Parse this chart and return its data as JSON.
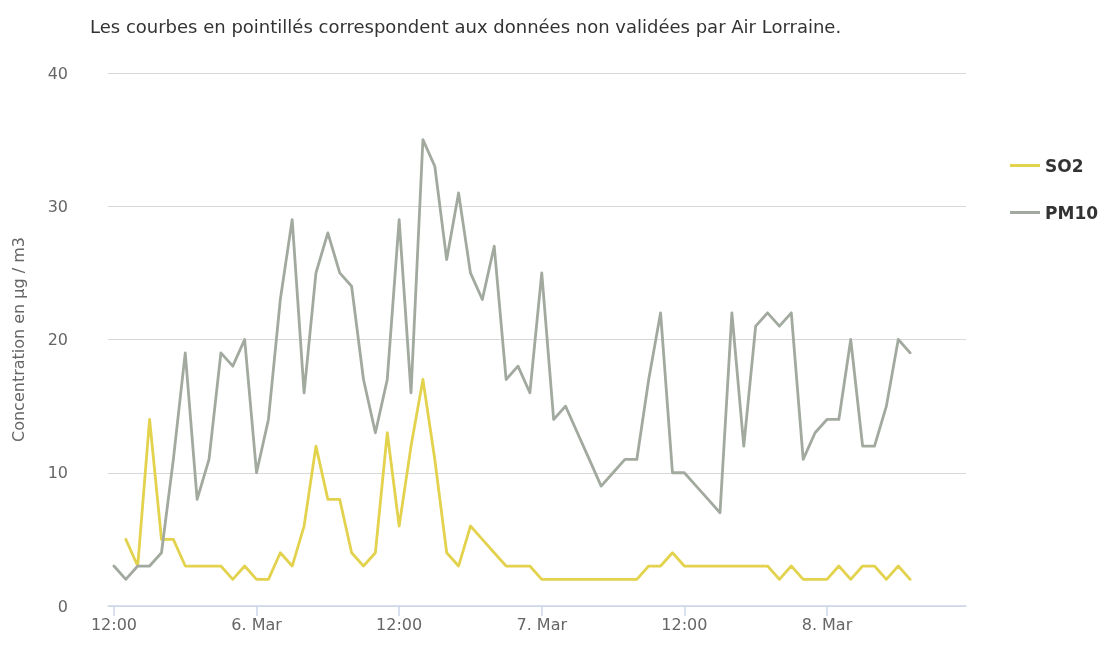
{
  "chart_data": {
    "type": "line",
    "title": "Les courbes en pointillés correspondent aux données non validées par Air Lorraine.",
    "ylabel": "Concentration en µg / m3",
    "x": [
      "--03-05T12:00",
      "--03-05T13:00",
      "--03-05T14:00",
      "--03-05T15:00",
      "--03-05T16:00",
      "--03-05T17:00",
      "--03-05T18:00",
      "--03-05T19:00",
      "--03-05T20:00",
      "--03-05T21:00",
      "--03-05T22:00",
      "--03-05T23:00",
      "--03-06T00:00",
      "--03-06T01:00",
      "--03-06T02:00",
      "--03-06T03:00",
      "--03-06T04:00",
      "--03-06T05:00",
      "--03-06T06:00",
      "--03-06T07:00",
      "--03-06T08:00",
      "--03-06T09:00",
      "--03-06T10:00",
      "--03-06T11:00",
      "--03-06T12:00",
      "--03-06T13:00",
      "--03-06T14:00",
      "--03-06T15:00",
      "--03-06T16:00",
      "--03-06T17:00",
      "--03-06T18:00",
      "--03-06T19:00",
      "--03-06T20:00",
      "--03-06T21:00",
      "--03-06T22:00",
      "--03-06T23:00",
      "--03-07T00:00",
      "--03-07T01:00",
      "--03-07T02:00",
      "--03-07T03:00",
      "--03-07T04:00",
      "--03-07T05:00",
      "--03-07T06:00",
      "--03-07T07:00",
      "--03-07T08:00",
      "--03-07T09:00",
      "--03-07T10:00",
      "--03-07T11:00",
      "--03-07T12:00",
      "--03-07T13:00",
      "--03-07T14:00",
      "--03-07T15:00",
      "--03-07T16:00",
      "--03-07T17:00",
      "--03-07T18:00",
      "--03-07T19:00",
      "--03-07T20:00",
      "--03-07T21:00",
      "--03-07T22:00",
      "--03-07T23:00",
      "--03-08T00:00",
      "--03-08T01:00",
      "--03-08T02:00",
      "--03-08T03:00",
      "--03-08T04:00",
      "--03-08T05:00",
      "--03-08T06:00",
      "--03-08T07:00"
    ],
    "xlim": [
      "--03-05T11:30",
      "--03-08T11:42"
    ],
    "xticks": [
      {
        "value": "--03-05T12:00",
        "label": "12:00"
      },
      {
        "value": "--03-06T00:00",
        "label": "6. Mar"
      },
      {
        "value": "--03-06T12:00",
        "label": "12:00"
      },
      {
        "value": "--03-07T00:00",
        "label": "7. Mar"
      },
      {
        "value": "--03-07T12:00",
        "label": "12:00"
      },
      {
        "value": "--03-08T00:00",
        "label": "8. Mar"
      }
    ],
    "ylim": [
      0,
      40
    ],
    "yticks": [
      0,
      10,
      20,
      30,
      40
    ],
    "series": [
      {
        "name": "SO2",
        "color": "#e3d24e",
        "values": [
          null,
          5,
          3,
          14,
          5,
          5,
          3,
          3,
          3,
          3,
          2,
          3,
          2,
          2,
          4,
          3,
          6,
          12,
          8,
          8,
          4,
          3,
          4,
          13,
          6,
          12,
          17,
          11,
          4,
          3,
          6,
          5,
          4,
          3,
          3,
          3,
          2,
          2,
          2,
          2,
          2,
          2,
          2,
          2,
          2,
          3,
          3,
          4,
          3,
          3,
          3,
          3,
          3,
          3,
          3,
          3,
          2,
          3,
          2,
          2,
          2,
          3,
          2,
          3,
          3,
          2,
          3,
          2
        ]
      },
      {
        "name": "PM10",
        "color": "#a2aa9f",
        "values": [
          3,
          2,
          3,
          3,
          4,
          11,
          19,
          8,
          11,
          19,
          18,
          20,
          10,
          14,
          23,
          29,
          16,
          25,
          28,
          25,
          24,
          17,
          13,
          17,
          29,
          16,
          35,
          33,
          26,
          31,
          25,
          23,
          27,
          17,
          18,
          16,
          25,
          14,
          15,
          13,
          11,
          9,
          10,
          11,
          11,
          17,
          22,
          10,
          10,
          9,
          8,
          7,
          22,
          12,
          21,
          22,
          21,
          22,
          11,
          13,
          14,
          14,
          20,
          12,
          12,
          15,
          20,
          19
        ]
      }
    ],
    "grid": "y",
    "legend": "top right",
    "marker": "none",
    "line_style": "solid"
  }
}
